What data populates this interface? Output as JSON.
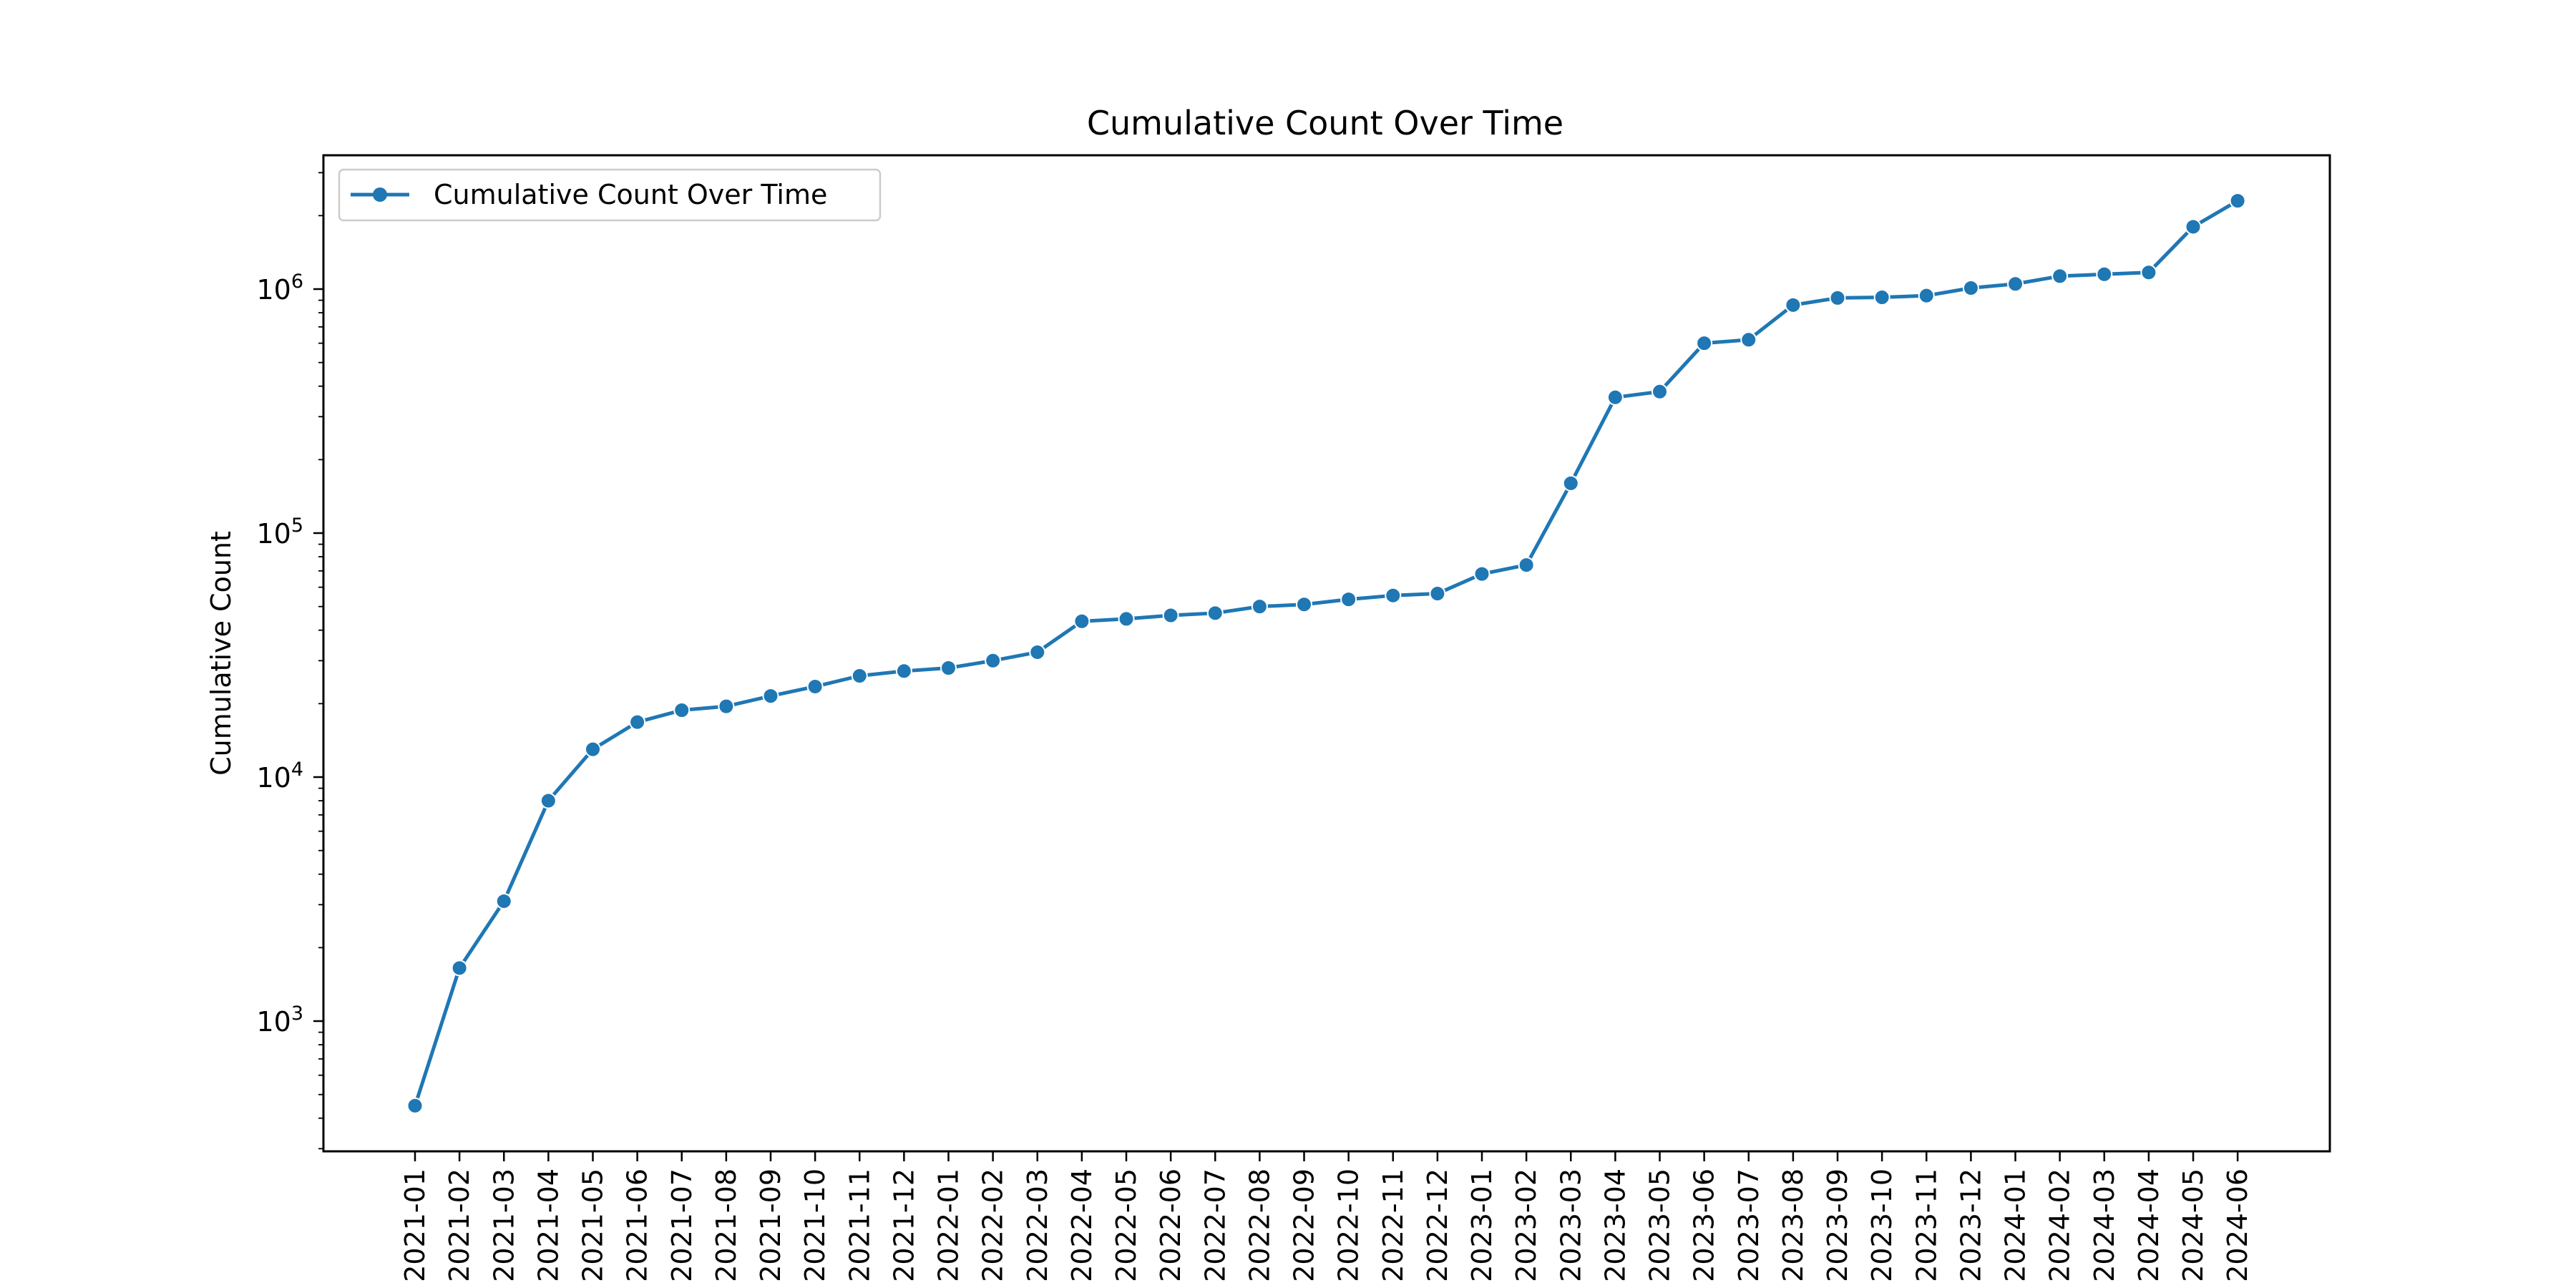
{
  "chart_data": {
    "type": "line",
    "title": "Cumulative Count Over Time",
    "xlabel": "",
    "ylabel": "Cumulative Count",
    "y_scale": "log",
    "ylim": [
      280,
      3600000
    ],
    "y_ticks": [
      {
        "value": 1000,
        "base": "10",
        "exp": "3"
      },
      {
        "value": 10000,
        "base": "10",
        "exp": "4"
      },
      {
        "value": 100000,
        "base": "10",
        "exp": "5"
      },
      {
        "value": 1000000,
        "base": "10",
        "exp": "6"
      }
    ],
    "grid": false,
    "legend": {
      "position": "top-left",
      "entries": [
        "Cumulative Count Over Time"
      ]
    },
    "color": "#1f77b4",
    "categories": [
      "2021-01",
      "2021-02",
      "2021-03",
      "2021-04",
      "2021-05",
      "2021-06",
      "2021-07",
      "2021-08",
      "2021-09",
      "2021-10",
      "2021-11",
      "2021-12",
      "2022-01",
      "2022-02",
      "2022-03",
      "2022-04",
      "2022-05",
      "2022-06",
      "2022-07",
      "2022-08",
      "2022-09",
      "2022-10",
      "2022-11",
      "2022-12",
      "2023-01",
      "2023-02",
      "2023-03",
      "2023-04",
      "2023-05",
      "2023-06",
      "2023-07",
      "2023-08",
      "2023-09",
      "2023-10",
      "2023-11",
      "2023-12",
      "2024-01",
      "2024-02",
      "2024-03",
      "2024-04",
      "2024-05",
      "2024-06"
    ],
    "series": [
      {
        "name": "Cumulative Count Over Time",
        "values": [
          450,
          1650,
          3100,
          8000,
          13000,
          16800,
          18800,
          19500,
          21500,
          23500,
          26000,
          27200,
          28000,
          30000,
          32500,
          43500,
          44500,
          46000,
          47000,
          50000,
          51000,
          53500,
          55500,
          56500,
          68000,
          74000,
          160000,
          360000,
          380000,
          600000,
          620000,
          860000,
          920000,
          925000,
          940000,
          1010000,
          1050000,
          1130000,
          1150000,
          1170000,
          1800000,
          2300000
        ]
      }
    ]
  }
}
